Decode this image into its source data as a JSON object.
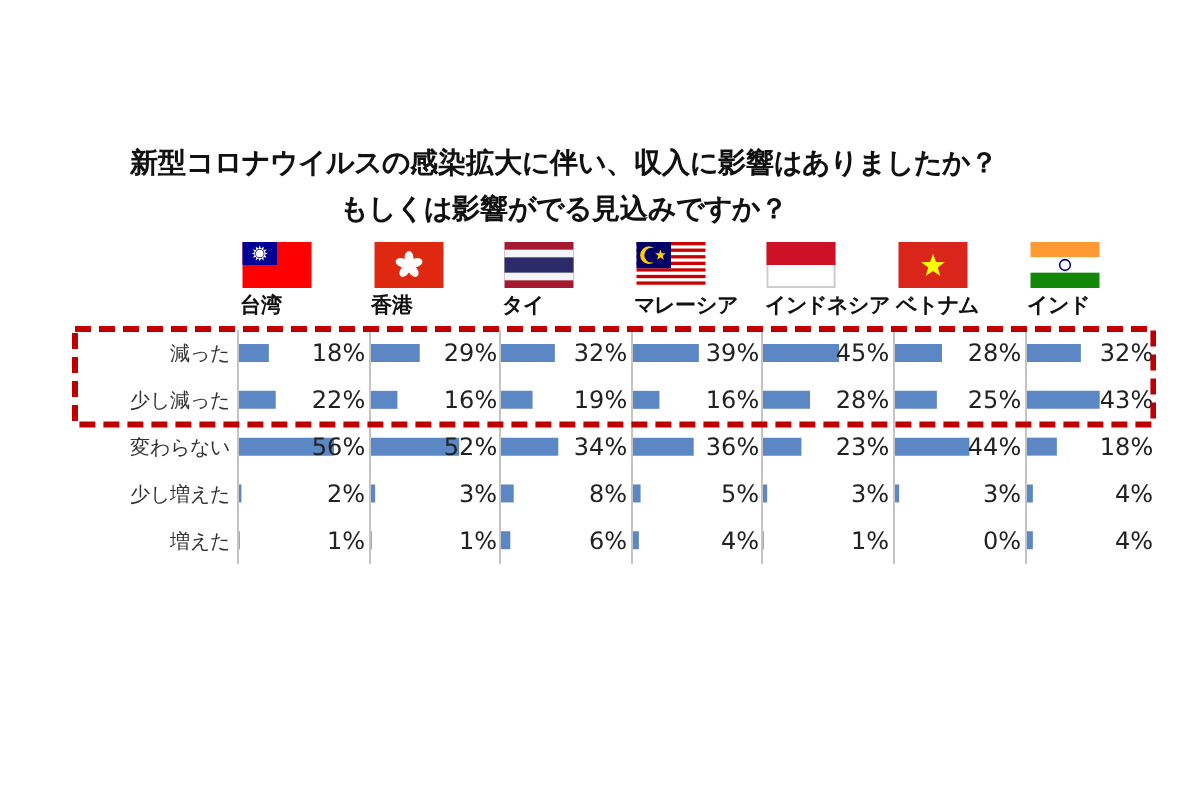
{
  "chart_data": [
    {
      "type": "other",
      "title": "新型コロナウイルスの感染拡大に伴い、収入に影響はありましたか？もしくは影響がでる見込みですか？"
    },
    {
      "type": "bar",
      "orientation": "horizontal",
      "title": "台湾",
      "categories": [
        "減った",
        "少し減った",
        "変わらない",
        "少し増えた",
        "増えた"
      ],
      "values": [
        18,
        22,
        56,
        2,
        1
      ],
      "value_labels": [
        "18%",
        "22%",
        "56%",
        "2%",
        "1%"
      ],
      "color": "#5b87c5",
      "tick_labels": "y"
    },
    {
      "type": "bar",
      "orientation": "horizontal",
      "title": "香港",
      "categories": [
        null,
        null,
        null,
        null,
        null
      ],
      "values": [
        29,
        16,
        52,
        3,
        1
      ],
      "value_labels": [
        "29%",
        "16%",
        "52%",
        "3%",
        "1%"
      ],
      "color": "#5b87c5",
      "tick_labels": false
    },
    {
      "type": "bar",
      "orientation": "horizontal",
      "title": "タイ",
      "categories": [
        null,
        null,
        null,
        null,
        null
      ],
      "values": [
        32,
        19,
        34,
        8,
        6
      ],
      "value_labels": [
        "32%",
        "19%",
        "34%",
        "8%",
        "6%"
      ],
      "color": "#5b87c5",
      "tick_labels": false
    },
    {
      "type": "bar",
      "orientation": "horizontal",
      "title": "マレーシア",
      "categories": [
        null,
        null,
        null,
        null,
        null
      ],
      "values": [
        39,
        16,
        36,
        5,
        4
      ],
      "value_labels": [
        "39%",
        "16%",
        "36%",
        "5%",
        "4%"
      ],
      "color": "#5b87c5",
      "tick_labels": false
    },
    {
      "type": "bar",
      "orientation": "horizontal",
      "title": "インドネシア",
      "categories": [
        null,
        null,
        null,
        null,
        null
      ],
      "values": [
        45,
        28,
        23,
        3,
        1
      ],
      "value_labels": [
        "45%",
        "28%",
        "23%",
        "3%",
        "1%"
      ],
      "color": "#5b87c5",
      "tick_labels": false
    },
    {
      "type": "bar",
      "orientation": "horizontal",
      "title": "ベトナム",
      "categories": [
        null,
        null,
        null,
        null,
        null
      ],
      "values": [
        28,
        25,
        44,
        3,
        0
      ],
      "value_labels": [
        "28%",
        "25%",
        "44%",
        "3%",
        "0%"
      ],
      "color": "#5b87c5",
      "tick_labels": false
    },
    {
      "type": "bar",
      "orientation": "horizontal",
      "title": "インド",
      "categories": [
        null,
        null,
        null,
        null,
        null
      ],
      "values": [
        32,
        43,
        18,
        4,
        4
      ],
      "value_labels": [
        "32%",
        "43%",
        "18%",
        "4%",
        "4%"
      ],
      "color": "#5b87c5",
      "tick_labels": false
    }
  ]
}
